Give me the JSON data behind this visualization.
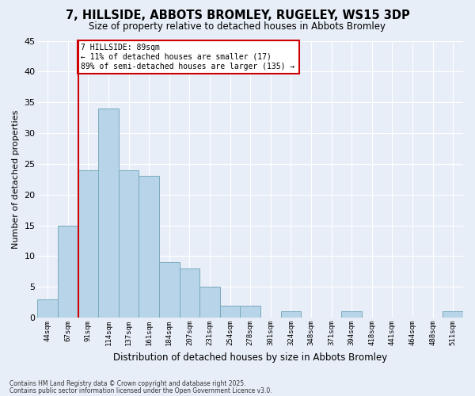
{
  "title": "7, HILLSIDE, ABBOTS BROMLEY, RUGELEY, WS15 3DP",
  "subtitle": "Size of property relative to detached houses in Abbots Bromley",
  "xlabel": "Distribution of detached houses by size in Abbots Bromley",
  "ylabel": "Number of detached properties",
  "footnote1": "Contains HM Land Registry data © Crown copyright and database right 2025.",
  "footnote2": "Contains public sector information licensed under the Open Government Licence v3.0.",
  "bar_labels": [
    "44sqm",
    "67sqm",
    "91sqm",
    "114sqm",
    "137sqm",
    "161sqm",
    "184sqm",
    "207sqm",
    "231sqm",
    "254sqm",
    "278sqm",
    "301sqm",
    "324sqm",
    "348sqm",
    "371sqm",
    "394sqm",
    "418sqm",
    "441sqm",
    "464sqm",
    "488sqm",
    "511sqm"
  ],
  "bar_values": [
    3,
    15,
    24,
    34,
    24,
    23,
    9,
    8,
    5,
    2,
    2,
    0,
    1,
    0,
    0,
    1,
    0,
    0,
    0,
    0,
    1
  ],
  "bar_color": "#b8d4e8",
  "bar_edge_color": "#7aaabf",
  "background_color": "#e8eef8",
  "grid_color": "#ffffff",
  "vline_x_index": 2,
  "vline_color": "#cc0000",
  "annotation_title": "7 HILLSIDE: 89sqm",
  "annotation_line1": "← 11% of detached houses are smaller (17)",
  "annotation_line2": "89% of semi-detached houses are larger (135) →",
  "annotation_box_facecolor": "#ffffff",
  "annotation_box_edge": "#cc0000",
  "ylim": [
    0,
    45
  ],
  "yticks": [
    0,
    5,
    10,
    15,
    20,
    25,
    30,
    35,
    40,
    45
  ]
}
